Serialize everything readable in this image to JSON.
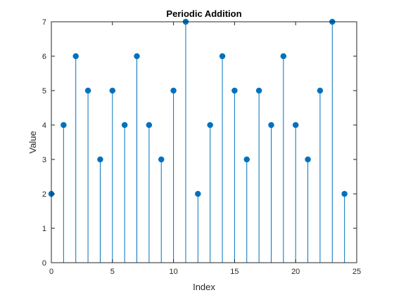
{
  "chart_data": {
    "type": "stem",
    "title": "Periodic Addition",
    "xlabel": "Index",
    "ylabel": "Value",
    "xlim": [
      0,
      25
    ],
    "ylim": [
      0,
      7
    ],
    "xticks": [
      0,
      5,
      10,
      15,
      20,
      25
    ],
    "yticks": [
      0,
      1,
      2,
      3,
      4,
      5,
      6,
      7
    ],
    "grid": false,
    "box": true,
    "color": "#0072BD",
    "x": [
      0,
      1,
      2,
      3,
      4,
      5,
      6,
      7,
      8,
      9,
      10,
      11,
      12,
      13,
      14,
      15,
      16,
      17,
      18,
      19,
      20,
      21,
      22,
      23,
      24
    ],
    "values": [
      2,
      4,
      6,
      5,
      3,
      5,
      4,
      6,
      4,
      3,
      5,
      7,
      2,
      4,
      6,
      5,
      3,
      5,
      4,
      6,
      4,
      3,
      5,
      7,
      2
    ]
  }
}
